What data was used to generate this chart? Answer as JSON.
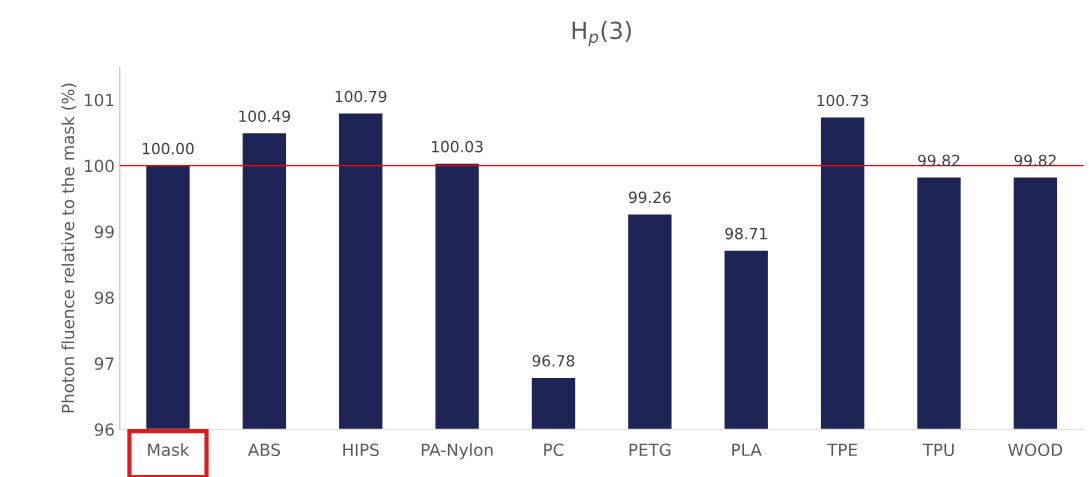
{
  "chart_data": {
    "type": "bar",
    "title": "H$_{p}$(3)",
    "ylabel": "Photon fluence relative to the mask (%)",
    "categories": [
      "Mask",
      "ABS",
      "HIPS",
      "PA-Nylon",
      "PC",
      "PETG",
      "PLA",
      "TPE",
      "TPU",
      "WOOD"
    ],
    "values": [
      100.0,
      100.49,
      100.79,
      100.03,
      96.78,
      99.26,
      98.71,
      100.73,
      99.82,
      99.82
    ],
    "value_labels": [
      "100.00",
      "100.49",
      "100.79",
      "100.03",
      "96.78",
      "99.26",
      "98.71",
      "100.73",
      "99.82",
      "99.82"
    ],
    "color": "#1f2456",
    "ylim": [
      96,
      101.5
    ],
    "yticks": [
      96,
      97,
      98,
      99,
      100,
      101
    ],
    "grid": false,
    "ref_lines": [
      {
        "axis": "y",
        "value": 100,
        "color": "#ff0000"
      }
    ]
  }
}
